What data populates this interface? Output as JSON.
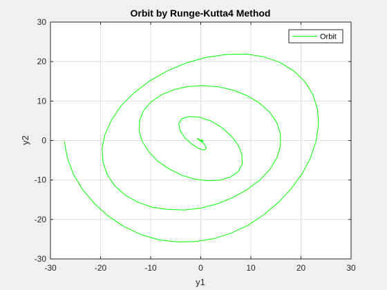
{
  "chart_data": {
    "type": "line",
    "title": "Orbit by Runge-Kutta4 Method",
    "xlabel": "y1",
    "ylabel": "y2",
    "xlim": [
      -30,
      30
    ],
    "ylim": [
      -30,
      30
    ],
    "xticks": [
      -30,
      -20,
      -10,
      0,
      10,
      20,
      30
    ],
    "yticks": [
      -30,
      -20,
      -10,
      0,
      10,
      20,
      30
    ],
    "grid": true,
    "legend_position": "top-right",
    "series": [
      {
        "name": "Orbit",
        "color": "#00ff00",
        "x": [
          -27.2,
          -26.6,
          -25.4,
          -23.6,
          -21.2,
          -18.4,
          -15.2,
          -11.8,
          -8.2,
          -4.6,
          -1.0,
          2.5,
          6.0,
          9.4,
          12.5,
          15.4,
          18.0,
          20.2,
          21.9,
          23.0,
          23.5,
          23.3,
          22.4,
          20.8,
          18.6,
          15.8,
          12.6,
          9.0,
          5.2,
          1.2,
          -2.8,
          -6.6,
          -10.2,
          -13.3,
          -15.9,
          -17.8,
          -19.1,
          -19.7,
          -19.5,
          -18.7,
          -17.2,
          -15.1,
          -12.6,
          -9.7,
          -6.5,
          -3.2,
          0.1,
          3.4,
          6.5,
          9.3,
          11.8,
          13.8,
          15.2,
          15.9,
          15.9,
          15.2,
          13.8,
          11.8,
          9.4,
          6.6,
          3.6,
          0.5,
          -2.5,
          -5.3,
          -7.8,
          -9.9,
          -11.4,
          -12.2,
          -12.3,
          -11.7,
          -10.4,
          -8.6,
          -6.3,
          -3.8,
          -1.1,
          1.5,
          4.0,
          6.0,
          7.5,
          8.3,
          8.2,
          7.5,
          6.1,
          4.3,
          2.1,
          -0.2,
          -2.3,
          -3.8,
          -4.4,
          -4.1,
          -3.1,
          -1.7,
          -0.3,
          0.8,
          1.1,
          0.7,
          0.0,
          -0.6,
          -0.7,
          -0.3,
          0.2,
          0.5,
          0.3,
          0.0
        ],
        "y": [
          -0.3,
          -4.5,
          -8.6,
          -12.4,
          -16.0,
          -19.2,
          -21.9,
          -23.9,
          -25.2,
          -25.7,
          -25.6,
          -24.9,
          -23.5,
          -21.5,
          -18.9,
          -15.8,
          -12.3,
          -8.5,
          -4.4,
          -0.2,
          4.0,
          8.0,
          11.6,
          14.9,
          17.6,
          19.8,
          21.2,
          21.9,
          21.8,
          21.1,
          19.7,
          17.7,
          15.1,
          12.1,
          8.8,
          5.2,
          1.6,
          -2.0,
          -5.4,
          -8.6,
          -11.4,
          -13.8,
          -15.6,
          -16.9,
          -17.5,
          -17.6,
          -17.1,
          -16.0,
          -14.4,
          -12.4,
          -10.0,
          -7.3,
          -4.4,
          -1.4,
          1.6,
          4.5,
          7.1,
          9.4,
          11.3,
          12.7,
          13.6,
          13.9,
          13.7,
          12.9,
          11.6,
          9.8,
          7.6,
          5.1,
          2.5,
          -0.2,
          -2.8,
          -5.2,
          -7.2,
          -8.8,
          -9.8,
          -10.2,
          -10.0,
          -9.2,
          -7.8,
          -5.9,
          -3.6,
          -1.2,
          1.1,
          3.2,
          4.9,
          5.9,
          6.1,
          5.5,
          4.2,
          2.4,
          0.6,
          -1.0,
          -2.1,
          -2.4,
          -1.8,
          -0.9,
          0.0,
          0.5,
          0.5,
          0.1,
          -0.3,
          -0.2,
          0.2,
          0.0
        ]
      }
    ]
  }
}
